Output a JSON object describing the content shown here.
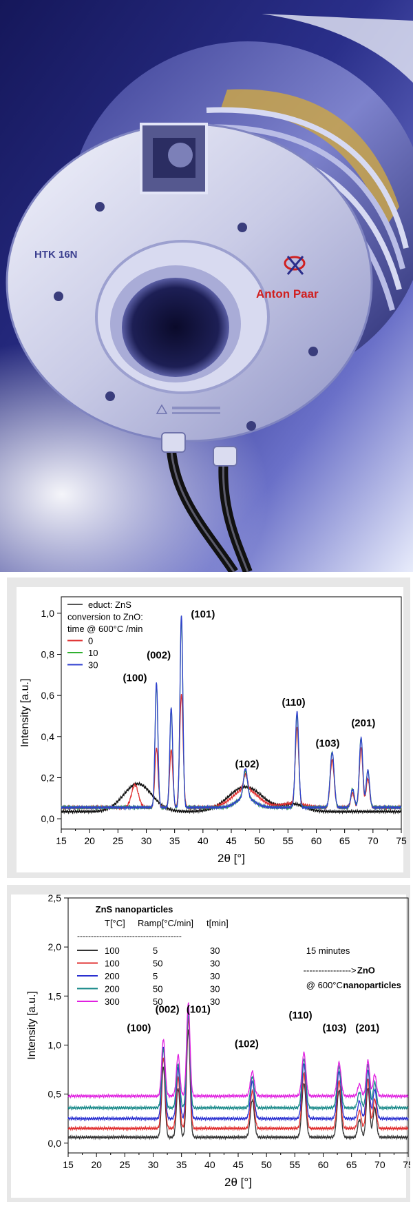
{
  "photo": {
    "device_label": "HTK 16N",
    "brand_label": "Anton Paar"
  },
  "chart_data": [
    {
      "type": "line",
      "title": "",
      "xlabel": "2θ [°]",
      "ylabel": "Intensity [a.u.]",
      "xlim": [
        15,
        75
      ],
      "ylim": [
        -0.05,
        1.08
      ],
      "x_ticks": [
        "15",
        "20",
        "25",
        "30",
        "35",
        "40",
        "45",
        "50",
        "55",
        "60",
        "65",
        "70",
        "75"
      ],
      "y_ticks": [
        "0,0",
        "0,2",
        "0,4",
        "0,6",
        "0,8",
        "1,0"
      ],
      "grid": false,
      "legend": {
        "placement": "top-left",
        "entries": [
          {
            "label": "educt: ZnS",
            "color": "#555555"
          },
          {
            "label": "conversion to ZnO:",
            "color": ""
          },
          {
            "label": "time @ 600°C /min",
            "color": ""
          },
          {
            "label": "0",
            "color": "#e03030"
          },
          {
            "label": "10",
            "color": "#30b030"
          },
          {
            "label": "30",
            "color": "#3040d0"
          }
        ]
      },
      "peak_labels": [
        {
          "label": "(100)",
          "x": 28.0,
          "y": 0.67
        },
        {
          "label": "(002)",
          "x": 32.2,
          "y": 0.78
        },
        {
          "label": "(101)",
          "x": 40.0,
          "y": 0.98
        },
        {
          "label": "(102)",
          "x": 47.8,
          "y": 0.25
        },
        {
          "label": "(110)",
          "x": 56.0,
          "y": 0.55
        },
        {
          "label": "(103)",
          "x": 62.0,
          "y": 0.35
        },
        {
          "label": "(201)",
          "x": 68.3,
          "y": 0.45
        }
      ],
      "series": [
        {
          "name": "educt: ZnS",
          "color": "#111111",
          "baseline": 0.035,
          "humps": [
            [
              28.5,
              0.135,
              2.5
            ],
            [
              47.5,
              0.12,
              3.0
            ],
            [
              56.0,
              0.035,
              2.0
            ]
          ],
          "peaks": []
        },
        {
          "name": "0",
          "color": "#e03030",
          "baseline": 0.055,
          "humps": [
            [
              47.5,
              0.09,
              2.2
            ],
            [
              56.0,
              0.02,
              2.0
            ]
          ],
          "peaks": [
            [
              28.0,
              0.11,
              0.6
            ],
            [
              31.8,
              0.29,
              0.28
            ],
            [
              34.4,
              0.28,
              0.28
            ],
            [
              36.2,
              0.55,
              0.3
            ],
            [
              47.5,
              0.07,
              0.35
            ],
            [
              56.6,
              0.37,
              0.3
            ],
            [
              62.8,
              0.23,
              0.35
            ],
            [
              66.4,
              0.07,
              0.3
            ],
            [
              67.9,
              0.29,
              0.3
            ],
            [
              69.1,
              0.14,
              0.3
            ]
          ]
        },
        {
          "name": "10",
          "color": "#30b030",
          "baseline": 0.055,
          "humps": [
            [
              47.5,
              0.05,
              1.5
            ]
          ],
          "peaks": [
            [
              31.8,
              0.6,
              0.25
            ],
            [
              34.4,
              0.48,
              0.25
            ],
            [
              36.2,
              0.93,
              0.25
            ],
            [
              47.5,
              0.13,
              0.35
            ],
            [
              56.6,
              0.45,
              0.3
            ],
            [
              62.8,
              0.27,
              0.35
            ],
            [
              66.4,
              0.09,
              0.3
            ],
            [
              67.9,
              0.34,
              0.3
            ],
            [
              69.1,
              0.18,
              0.3
            ]
          ]
        },
        {
          "name": "30",
          "color": "#3040d0",
          "baseline": 0.055,
          "humps": [
            [
              47.5,
              0.05,
              1.5
            ]
          ],
          "peaks": [
            [
              31.8,
              0.61,
              0.25
            ],
            [
              34.4,
              0.49,
              0.25
            ],
            [
              36.2,
              0.94,
              0.25
            ],
            [
              47.5,
              0.14,
              0.35
            ],
            [
              56.6,
              0.47,
              0.3
            ],
            [
              62.8,
              0.27,
              0.35
            ],
            [
              66.4,
              0.09,
              0.3
            ],
            [
              67.9,
              0.34,
              0.3
            ],
            [
              69.1,
              0.18,
              0.3
            ]
          ]
        }
      ]
    },
    {
      "type": "line",
      "title": "",
      "xlabel": "2θ [°]",
      "ylabel": "Intensity [a.u.]",
      "xlim": [
        15,
        75
      ],
      "ylim": [
        -0.1,
        2.5
      ],
      "x_ticks": [
        "15",
        "20",
        "25",
        "30",
        "35",
        "40",
        "45",
        "50",
        "55",
        "60",
        "65",
        "70",
        "75"
      ],
      "y_ticks": [
        "0,0",
        "0,5",
        "1,0",
        "1,5",
        "2,0",
        "2,5"
      ],
      "grid": false,
      "legend": {
        "placement": "top-left",
        "heading": "ZnS nanoparticles",
        "columns": [
          "T[°C]",
          "Ramp[°C/min]",
          "t[min]"
        ],
        "separator": "--------------------------------------",
        "rows": [
          {
            "T": "100",
            "ramp": "5",
            "t": "30",
            "color": "#333333"
          },
          {
            "T": "100",
            "ramp": "50",
            "t": "30",
            "color": "#e03030"
          },
          {
            "T": "200",
            "ramp": "5",
            "t": "30",
            "color": "#2a30d0"
          },
          {
            "T": "200",
            "ramp": "50",
            "t": "30",
            "color": "#1a8a8a"
          },
          {
            "T": "300",
            "ramp": "50",
            "t": "30",
            "color": "#e020e0"
          }
        ]
      },
      "annotations": [
        {
          "text": "15 minutes",
          "x": 57.0,
          "y": 1.93
        },
        {
          "text": "---------------->",
          "x": 56.5,
          "y": 1.73
        },
        {
          "text": "@ 600°C",
          "x": 57.0,
          "y": 1.58
        },
        {
          "text": "ZnO",
          "x": 66.0,
          "y": 1.73
        },
        {
          "text": "nanoparticles",
          "x": 63.5,
          "y": 1.58
        }
      ],
      "peak_labels": [
        {
          "label": "(100)",
          "x": 27.5,
          "y": 1.14
        },
        {
          "label": "(002)",
          "x": 32.5,
          "y": 1.33
        },
        {
          "label": "(101)",
          "x": 38.0,
          "y": 1.33
        },
        {
          "label": "(102)",
          "x": 46.5,
          "y": 0.98
        },
        {
          "label": "(110)",
          "x": 56.0,
          "y": 1.27
        },
        {
          "label": "(103)",
          "x": 62.0,
          "y": 1.14
        },
        {
          "label": "(201)",
          "x": 67.8,
          "y": 1.14
        }
      ],
      "series": [
        {
          "name": "",
          "color": "#333333",
          "baseline": 0.06,
          "peaks": [
            [
              31.8,
              0.72,
              0.3
            ],
            [
              34.4,
              0.5,
              0.3
            ],
            [
              36.2,
              1.1,
              0.3
            ],
            [
              47.5,
              0.38,
              0.35
            ],
            [
              56.6,
              0.55,
              0.35
            ],
            [
              62.8,
              0.48,
              0.35
            ],
            [
              66.4,
              0.18,
              0.3
            ],
            [
              67.9,
              0.5,
              0.3
            ],
            [
              69.1,
              0.3,
              0.3
            ]
          ]
        },
        {
          "name": "",
          "color": "#e03030",
          "baseline": 0.15,
          "peaks": [
            [
              31.8,
              0.72,
              0.3
            ],
            [
              34.4,
              0.52,
              0.3
            ],
            [
              36.2,
              1.12,
              0.3
            ],
            [
              47.5,
              0.38,
              0.35
            ],
            [
              56.6,
              0.56,
              0.35
            ],
            [
              62.8,
              0.48,
              0.35
            ],
            [
              66.4,
              0.18,
              0.3
            ],
            [
              67.9,
              0.5,
              0.3
            ],
            [
              69.1,
              0.3,
              0.3
            ]
          ]
        },
        {
          "name": "",
          "color": "#2a30d0",
          "baseline": 0.25,
          "peaks": [
            [
              31.8,
              0.72,
              0.3
            ],
            [
              34.4,
              0.52,
              0.3
            ],
            [
              36.2,
              1.12,
              0.3
            ],
            [
              47.5,
              0.38,
              0.35
            ],
            [
              56.6,
              0.56,
              0.35
            ],
            [
              62.8,
              0.48,
              0.35
            ],
            [
              66.4,
              0.18,
              0.3
            ],
            [
              67.9,
              0.5,
              0.3
            ],
            [
              69.1,
              0.3,
              0.3
            ]
          ]
        },
        {
          "name": "",
          "color": "#1a8a8a",
          "baseline": 0.36,
          "peaks": [
            [
              31.8,
              0.6,
              0.3
            ],
            [
              34.4,
              0.45,
              0.3
            ],
            [
              36.2,
              0.95,
              0.3
            ],
            [
              47.5,
              0.32,
              0.35
            ],
            [
              56.6,
              0.5,
              0.35
            ],
            [
              62.8,
              0.42,
              0.35
            ],
            [
              66.4,
              0.16,
              0.3
            ],
            [
              67.9,
              0.44,
              0.3
            ],
            [
              69.1,
              0.26,
              0.3
            ]
          ]
        },
        {
          "name": "",
          "color": "#e020e0",
          "baseline": 0.48,
          "peaks": [
            [
              31.8,
              0.58,
              0.3
            ],
            [
              34.4,
              0.42,
              0.3
            ],
            [
              36.2,
              0.95,
              0.3
            ],
            [
              47.5,
              0.25,
              0.35
            ],
            [
              56.6,
              0.44,
              0.35
            ],
            [
              62.8,
              0.34,
              0.35
            ],
            [
              66.4,
              0.12,
              0.3
            ],
            [
              67.9,
              0.36,
              0.3
            ],
            [
              69.1,
              0.22,
              0.3
            ]
          ]
        }
      ]
    }
  ]
}
